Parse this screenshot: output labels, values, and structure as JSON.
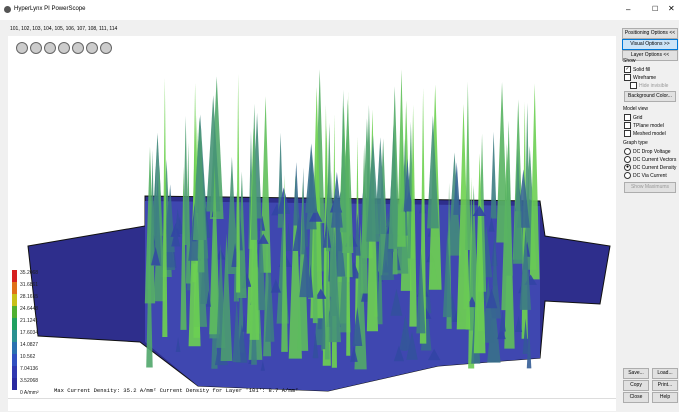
{
  "window": {
    "title": "HyperLynx PI PowerScope",
    "layers": "101, 102, 103, 104, 105, 106, 107, 108, 111, 114"
  },
  "panel": {
    "tabs": [
      "Positioning Options <<",
      "Visual Options >>",
      "Layer Options <<"
    ],
    "show": {
      "heading": "Show",
      "options": [
        "Solid fill",
        "Wireframe",
        "Hide invisible"
      ],
      "button": "Background Color..."
    },
    "model_view": {
      "heading": "Model view",
      "options": [
        "Grid",
        "TPlane model",
        "Meshed model"
      ]
    },
    "graph_type": {
      "heading": "Graph type",
      "options": [
        "DC Drop Voltage",
        "DC Current Vectors",
        "DC Current Density",
        "DC Via Current"
      ],
      "button": "Show Maximums"
    },
    "buttons": [
      "Save...",
      "Load...",
      "Copy",
      "Print...",
      "Close",
      "Help"
    ]
  },
  "legend": [
    "35.2068",
    "31.6861",
    "28.1655",
    "24.6448",
    "21.1241",
    "17.6034",
    "14.0827",
    "10.562",
    "7.04136",
    "3.52068",
    "0 A/mm²"
  ],
  "status": "Max Current Density: 35.2 A/mm²   Current Density for Layer '101': 8.7 A/mm²"
}
